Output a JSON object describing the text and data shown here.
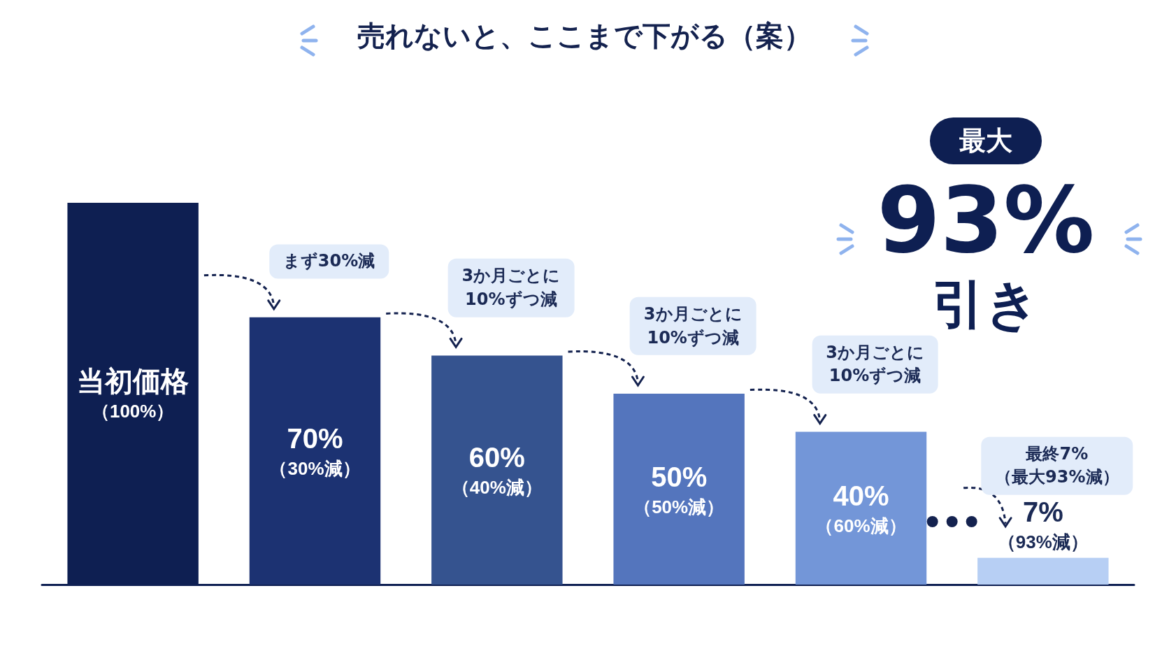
{
  "chart_data": {
    "type": "bar",
    "title": "売れないと、ここまで下がる（案）",
    "categories": [
      null,
      null,
      null,
      null,
      null,
      null
    ],
    "values": [
      100,
      70,
      60,
      50,
      40,
      7
    ],
    "colors": [
      "#0e1f52",
      "#1c3272",
      "#35538f",
      "#5475bd",
      "#7396d8",
      "#b7cff4"
    ],
    "value_labels": [
      "当初価格（100%）",
      "70%（30%減）",
      "60%（40%減）",
      "50%（50%減）",
      "40%（60%減）",
      "7%（93%減）"
    ],
    "annotations": [
      "まず30%減",
      "3か月ごとに10%ずつ減",
      "3か月ごとに10%ずつ減",
      "3か月ごとに10%ずつ減",
      "最終7%（最大93%減）",
      "最大",
      "93%",
      "引き"
    ]
  }
}
